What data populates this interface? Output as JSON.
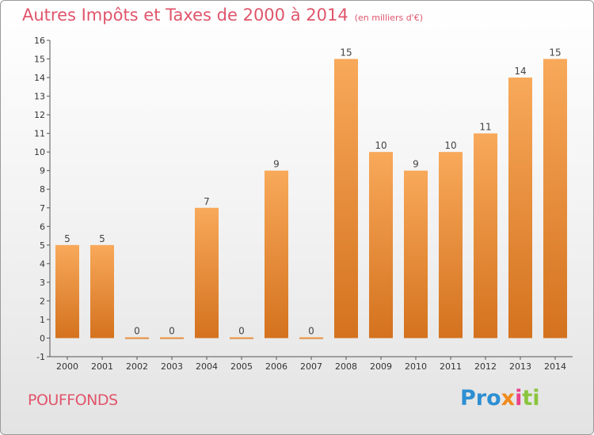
{
  "title": "Autres Impôts et Taxes de 2000 à 2014",
  "title_unit": "(en milliers d'€)",
  "commune": "POUFFONDS",
  "logo": {
    "part1": "Pro",
    "part2": "x",
    "part3": "i",
    "part4": "ti"
  },
  "colors": {
    "bar_top": "#f8a95a",
    "bar_bottom": "#d4721e",
    "title": "#e0556b"
  },
  "chart_data": {
    "type": "bar",
    "title": "Autres Impôts et Taxes de 2000 à 2014",
    "categories": [
      "2000",
      "2001",
      "2002",
      "2003",
      "2004",
      "2005",
      "2006",
      "2007",
      "2008",
      "2009",
      "2010",
      "2011",
      "2012",
      "2013",
      "2014"
    ],
    "values": [
      5,
      5,
      0,
      0,
      7,
      0,
      9,
      0,
      15,
      10,
      9,
      10,
      11,
      14,
      15
    ],
    "value_labels": [
      "5",
      "5",
      "0",
      "0",
      "7",
      "0",
      "9",
      "0",
      "15",
      "10",
      "9",
      "10",
      "11",
      "14",
      "15"
    ],
    "ylim": [
      -1,
      16
    ],
    "yticks": [
      -1,
      0,
      1,
      2,
      3,
      4,
      5,
      6,
      7,
      8,
      9,
      10,
      11,
      12,
      13,
      14,
      15,
      16
    ],
    "ytick_labels": [
      "-1",
      "0",
      "1",
      "2",
      "3",
      "4",
      "5",
      "6",
      "7",
      "8",
      "9",
      "10",
      "11",
      "12",
      "13",
      "14",
      "15",
      "16"
    ],
    "grid": false,
    "legend": "none"
  }
}
